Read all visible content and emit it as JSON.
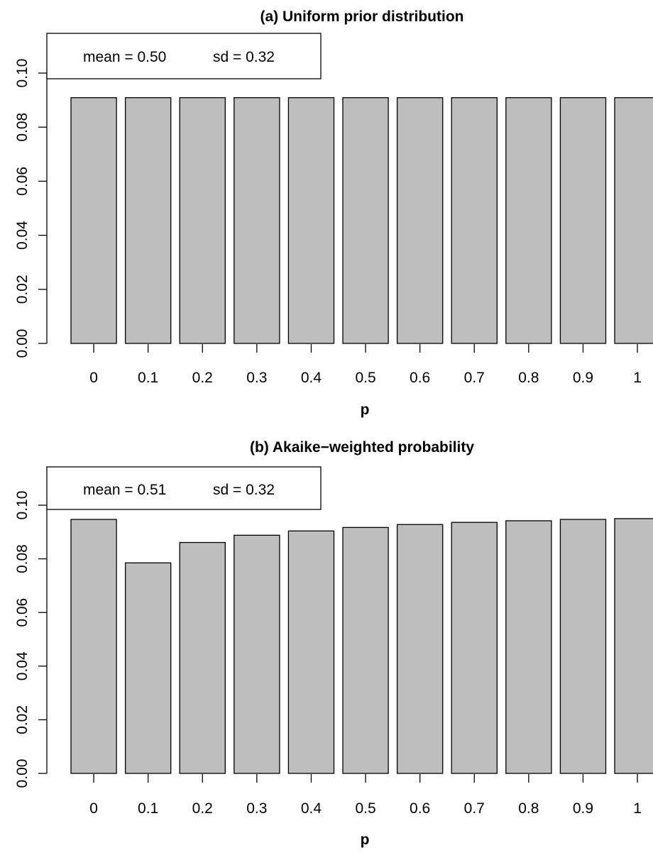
{
  "chart_data": [
    {
      "type": "bar",
      "title": "(a) Uniform prior distribution",
      "xlabel": "p",
      "ylabel": "",
      "categories": [
        "0",
        "0.1",
        "0.2",
        "0.3",
        "0.4",
        "0.5",
        "0.6",
        "0.7",
        "0.8",
        "0.9",
        "1"
      ],
      "values": [
        0.0909,
        0.0909,
        0.0909,
        0.0909,
        0.0909,
        0.0909,
        0.0909,
        0.0909,
        0.0909,
        0.0909,
        0.0909
      ],
      "ylim": [
        0,
        0.1
      ],
      "yticks": [
        "0.00",
        "0.02",
        "0.04",
        "0.06",
        "0.08",
        "0.10"
      ],
      "legend": {
        "mean": "mean = 0.50",
        "sd": "sd = 0.32",
        "position": "top-left"
      },
      "bar_color": "#bebebe",
      "grid": false
    },
    {
      "type": "bar",
      "title": "(b) Akaike−weighted probability",
      "xlabel": "p",
      "ylabel": "",
      "categories": [
        "0",
        "0.1",
        "0.2",
        "0.3",
        "0.4",
        "0.5",
        "0.6",
        "0.7",
        "0.8",
        "0.9",
        "1"
      ],
      "values": [
        0.0947,
        0.0785,
        0.0861,
        0.0888,
        0.0904,
        0.0917,
        0.0928,
        0.0936,
        0.0942,
        0.0947,
        0.095
      ],
      "ylim": [
        0,
        0.1
      ],
      "yticks": [
        "0.00",
        "0.02",
        "0.04",
        "0.06",
        "0.08",
        "0.10"
      ],
      "legend": {
        "mean": "mean = 0.51",
        "sd": "sd = 0.32",
        "position": "top-left"
      },
      "bar_color": "#bebebe",
      "grid": false
    }
  ]
}
